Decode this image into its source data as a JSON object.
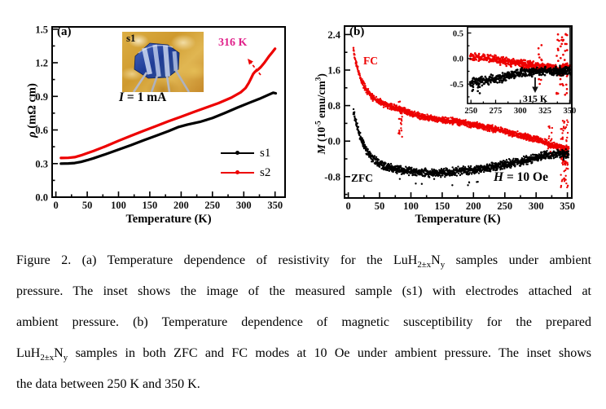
{
  "figure": {
    "panel_a": {
      "label": "(a)",
      "photo": {
        "label": "s1"
      },
      "current_rich": [
        [
          "I",
          "i"
        ],
        [
          " = 1 mA",
          ""
        ]
      ],
      "transition_label": "316 K",
      "transition_color": "#e0218a",
      "ylabel_rich": [
        [
          "ρ",
          "i"
        ],
        [
          " (mΩ cm)",
          ""
        ]
      ]
    },
    "panel_b": {
      "label": "(b)",
      "field_rich": [
        [
          "H",
          "i"
        ],
        [
          " = 10 Oe",
          ""
        ]
      ],
      "ylabel_rich": [
        [
          "M",
          "i"
        ],
        [
          " (10",
          ""
        ],
        [
          "-5",
          "sup"
        ],
        [
          " emu/cm",
          ""
        ],
        [
          "3",
          "sup"
        ],
        [
          ")",
          ""
        ]
      ],
      "inset_annotation": "315 K"
    },
    "caption": {
      "lines": [
        [
          [
            "Figure 2. (a) Temperature dependence of resistivity for the LuH",
            ""
          ],
          [
            "2±x",
            "sub"
          ],
          [
            "N",
            ""
          ],
          [
            "y",
            "sub"
          ],
          [
            " samples under ambient",
            ""
          ]
        ],
        [
          [
            "pressure. The inset shows the image of the measured sample (s1) with electrodes attached at",
            ""
          ]
        ],
        [
          [
            "ambient pressure. (b) Temperature dependence of magnetic susceptibility for the prepared",
            ""
          ]
        ],
        [
          [
            "LuH",
            ""
          ],
          [
            "2±x",
            "sub"
          ],
          [
            "N",
            ""
          ],
          [
            "y",
            "sub"
          ],
          [
            " samples in both ZFC and FC modes at 10 Oe under ambient pressure. The inset shows",
            ""
          ]
        ],
        [
          [
            "the data between 250 K and 350 K.",
            ""
          ]
        ]
      ]
    }
  },
  "chart_data": [
    {
      "id": "a",
      "type": "line",
      "title": "Resistivity vs temperature",
      "xlabel": "Temperature (K)",
      "ylabel": "rho (mOhm cm)",
      "xlim": [
        0,
        350
      ],
      "ylim": [
        0,
        1.5
      ],
      "xticks": [
        0,
        50,
        100,
        150,
        200,
        250,
        300,
        350
      ],
      "xtick_labels": [
        "0",
        "50",
        "100",
        "150",
        "200",
        "250",
        "300",
        "350"
      ],
      "xtick_minor": 25,
      "yticks": [
        0.0,
        0.3,
        0.6,
        0.9,
        1.2,
        1.5
      ],
      "ytick_labels": [
        "0.0",
        "0.3",
        "0.6",
        "0.9",
        "1.2",
        "1.5"
      ],
      "ytick_minor": 0.15,
      "annotations": {
        "transition_K": 316,
        "current": "I = 1 mA",
        "inset_sample": "s1"
      },
      "series": [
        {
          "name": "s1",
          "color": "#000000",
          "points": [
            [
              8,
              0.3
            ],
            [
              20,
              0.301
            ],
            [
              30,
              0.305
            ],
            [
              40,
              0.315
            ],
            [
              50,
              0.33
            ],
            [
              60,
              0.347
            ],
            [
              80,
              0.385
            ],
            [
              100,
              0.425
            ],
            [
              120,
              0.465
            ],
            [
              140,
              0.508
            ],
            [
              160,
              0.548
            ],
            [
              180,
              0.59
            ],
            [
              195,
              0.625
            ],
            [
              210,
              0.648
            ],
            [
              230,
              0.672
            ],
            [
              250,
              0.706
            ],
            [
              270,
              0.752
            ],
            [
              290,
              0.8
            ],
            [
              310,
              0.845
            ],
            [
              325,
              0.878
            ],
            [
              340,
              0.915
            ],
            [
              347,
              0.932
            ],
            [
              351,
              0.927
            ]
          ]
        },
        {
          "name": "s2",
          "color": "#ed0000",
          "points": [
            [
              8,
              0.35
            ],
            [
              20,
              0.351
            ],
            [
              30,
              0.357
            ],
            [
              40,
              0.373
            ],
            [
              50,
              0.393
            ],
            [
              60,
              0.412
            ],
            [
              80,
              0.455
            ],
            [
              100,
              0.503
            ],
            [
              120,
              0.548
            ],
            [
              140,
              0.592
            ],
            [
              160,
              0.635
            ],
            [
              180,
              0.678
            ],
            [
              200,
              0.718
            ],
            [
              220,
              0.76
            ],
            [
              240,
              0.8
            ],
            [
              260,
              0.84
            ],
            [
              280,
              0.888
            ],
            [
              295,
              0.935
            ],
            [
              303,
              0.975
            ],
            [
              308,
              1.02
            ],
            [
              312,
              1.065
            ],
            [
              315,
              1.1
            ],
            [
              318,
              1.12
            ],
            [
              322,
              1.135
            ],
            [
              327,
              1.16
            ],
            [
              333,
              1.2
            ],
            [
              340,
              1.255
            ],
            [
              345,
              1.29
            ],
            [
              350,
              1.325
            ]
          ]
        }
      ]
    },
    {
      "id": "b",
      "type": "scatter",
      "title": "Magnetization vs temperature (ZFC/FC)",
      "xlabel": "Temperature (K)",
      "ylabel": "M (10^-5 emu/cm^3)",
      "xlim": [
        0,
        350
      ],
      "ylim": [
        -1.28,
        2.59
      ],
      "xticks": [
        0,
        50,
        100,
        150,
        200,
        250,
        300,
        350
      ],
      "xtick_labels": [
        "0",
        "50",
        "100",
        "150",
        "200",
        "250",
        "300",
        "350"
      ],
      "xtick_minor": 25,
      "yticks": [
        -0.8,
        0.0,
        0.8,
        1.6,
        2.4
      ],
      "ytick_labels": [
        "-0.8",
        "0.0",
        "0.8",
        "1.6",
        "2.4"
      ],
      "ytick_minor": 0.4,
      "annotations": {
        "field": "H = 10 Oe",
        "star_T": 344
      },
      "star": {
        "t": 344,
        "v": -0.32
      },
      "series": [
        {
          "name": "FC",
          "color": "#ed0000",
          "trange": [
            8,
            352
          ],
          "step": 0.5,
          "per": 2,
          "noise": 0.05,
          "base": [
            [
              8,
              2.08
            ],
            [
              12,
              1.78
            ],
            [
              16,
              1.56
            ],
            [
              20,
              1.4
            ],
            [
              25,
              1.25
            ],
            [
              30,
              1.13
            ],
            [
              35,
              1.04
            ],
            [
              40,
              0.97
            ],
            [
              50,
              0.88
            ],
            [
              60,
              0.82
            ],
            [
              70,
              0.77
            ],
            [
              80,
              0.73
            ],
            [
              90,
              0.67
            ],
            [
              100,
              0.62
            ],
            [
              120,
              0.55
            ],
            [
              140,
              0.5
            ],
            [
              160,
              0.46
            ],
            [
              180,
              0.42
            ],
            [
              200,
              0.37
            ],
            [
              220,
              0.31
            ],
            [
              240,
              0.25
            ],
            [
              260,
              0.18
            ],
            [
              280,
              0.11
            ],
            [
              300,
              0.04
            ],
            [
              310,
              -0.01
            ],
            [
              320,
              -0.06
            ],
            [
              330,
              -0.11
            ],
            [
              340,
              -0.15
            ],
            [
              352,
              -0.18
            ]
          ],
          "bursts": [
            {
              "t": 83,
              "spread": 3,
              "ymin": 0.08,
              "ymax": 0.9,
              "n": 25
            },
            {
              "t": 322,
              "spread": 4,
              "ymin": -0.35,
              "ymax": 0.45,
              "n": 15
            },
            {
              "t": 345,
              "spread": 6,
              "ymin": -1.05,
              "ymax": 0.5,
              "n": 70
            }
          ]
        },
        {
          "name": "ZFC",
          "color": "#000000",
          "trange": [
            8,
            352
          ],
          "step": 0.5,
          "per": 2,
          "noise": 0.065,
          "base": [
            [
              8,
              0.7
            ],
            [
              10,
              0.55
            ],
            [
              12,
              0.42
            ],
            [
              15,
              0.27
            ],
            [
              18,
              0.14
            ],
            [
              22,
              0.0
            ],
            [
              26,
              -0.13
            ],
            [
              30,
              -0.23
            ],
            [
              35,
              -0.33
            ],
            [
              40,
              -0.4
            ],
            [
              45,
              -0.46
            ],
            [
              50,
              -0.5
            ],
            [
              60,
              -0.57
            ],
            [
              70,
              -0.61
            ],
            [
              80,
              -0.64
            ],
            [
              90,
              -0.66
            ],
            [
              100,
              -0.68
            ],
            [
              115,
              -0.7
            ],
            [
              130,
              -0.715
            ],
            [
              145,
              -0.715
            ],
            [
              160,
              -0.7
            ],
            [
              180,
              -0.67
            ],
            [
              200,
              -0.64
            ],
            [
              220,
              -0.6
            ],
            [
              240,
              -0.555
            ],
            [
              260,
              -0.5
            ],
            [
              280,
              -0.44
            ],
            [
              300,
              -0.37
            ],
            [
              315,
              -0.32
            ],
            [
              330,
              -0.29
            ],
            [
              340,
              -0.28
            ],
            [
              352,
              -0.29
            ]
          ],
          "bursts": [
            {
              "t": 140,
              "spread": 70,
              "ymin": -1.0,
              "ymax": -0.85,
              "n": 10
            }
          ]
        }
      ],
      "inset": {
        "xlim": [
          250,
          350
        ],
        "ylim": [
          -0.88,
          0.62
        ],
        "xticks": [
          250,
          275,
          300,
          325,
          350
        ],
        "xtick_labels": [
          "250",
          "275",
          "300",
          "325",
          "350"
        ],
        "xtick_minor": 12.5,
        "yticks": [
          0.5,
          0.0,
          -0.5
        ],
        "ytick_labels": [
          "0.5",
          "0.0",
          "-0.5"
        ],
        "ytick_minor": 0.25,
        "annotation_K": 315,
        "star": {
          "t": 340,
          "v": -0.23
        },
        "series": [
          {
            "name": "FC",
            "color": "#ed0000",
            "trange": [
              249,
              351
            ],
            "step": 0.45,
            "per": 2,
            "noise": 0.055,
            "base": [
              [
                249,
                0.05
              ],
              [
                260,
                0.02
              ],
              [
                275,
                -0.02
              ],
              [
                290,
                -0.07
              ],
              [
                300,
                -0.1
              ],
              [
                310,
                -0.13
              ],
              [
                320,
                -0.16
              ],
              [
                330,
                -0.18
              ],
              [
                340,
                -0.2
              ],
              [
                351,
                -0.16
              ]
            ],
            "bursts": [
              {
                "t": 320,
                "spread": 2,
                "ymin": -0.5,
                "ymax": 0.48,
                "n": 12
              },
              {
                "t": 342,
                "spread": 6,
                "ymin": -0.75,
                "ymax": 0.48,
                "n": 45
              }
            ]
          },
          {
            "name": "ZFC",
            "color": "#000000",
            "trange": [
              249,
              351
            ],
            "step": 0.45,
            "per": 2,
            "noise": 0.06,
            "base": [
              [
                249,
                -0.48
              ],
              [
                260,
                -0.44
              ],
              [
                275,
                -0.4
              ],
              [
                290,
                -0.33
              ],
              [
                300,
                -0.29
              ],
              [
                310,
                -0.26
              ],
              [
                320,
                -0.25
              ],
              [
                335,
                -0.24
              ],
              [
                351,
                -0.25
              ]
            ],
            "bursts": [
              {
                "t": 254,
                "spread": 5,
                "ymin": -0.68,
                "ymax": -0.55,
                "n": 6
              }
            ]
          }
        ]
      }
    }
  ]
}
